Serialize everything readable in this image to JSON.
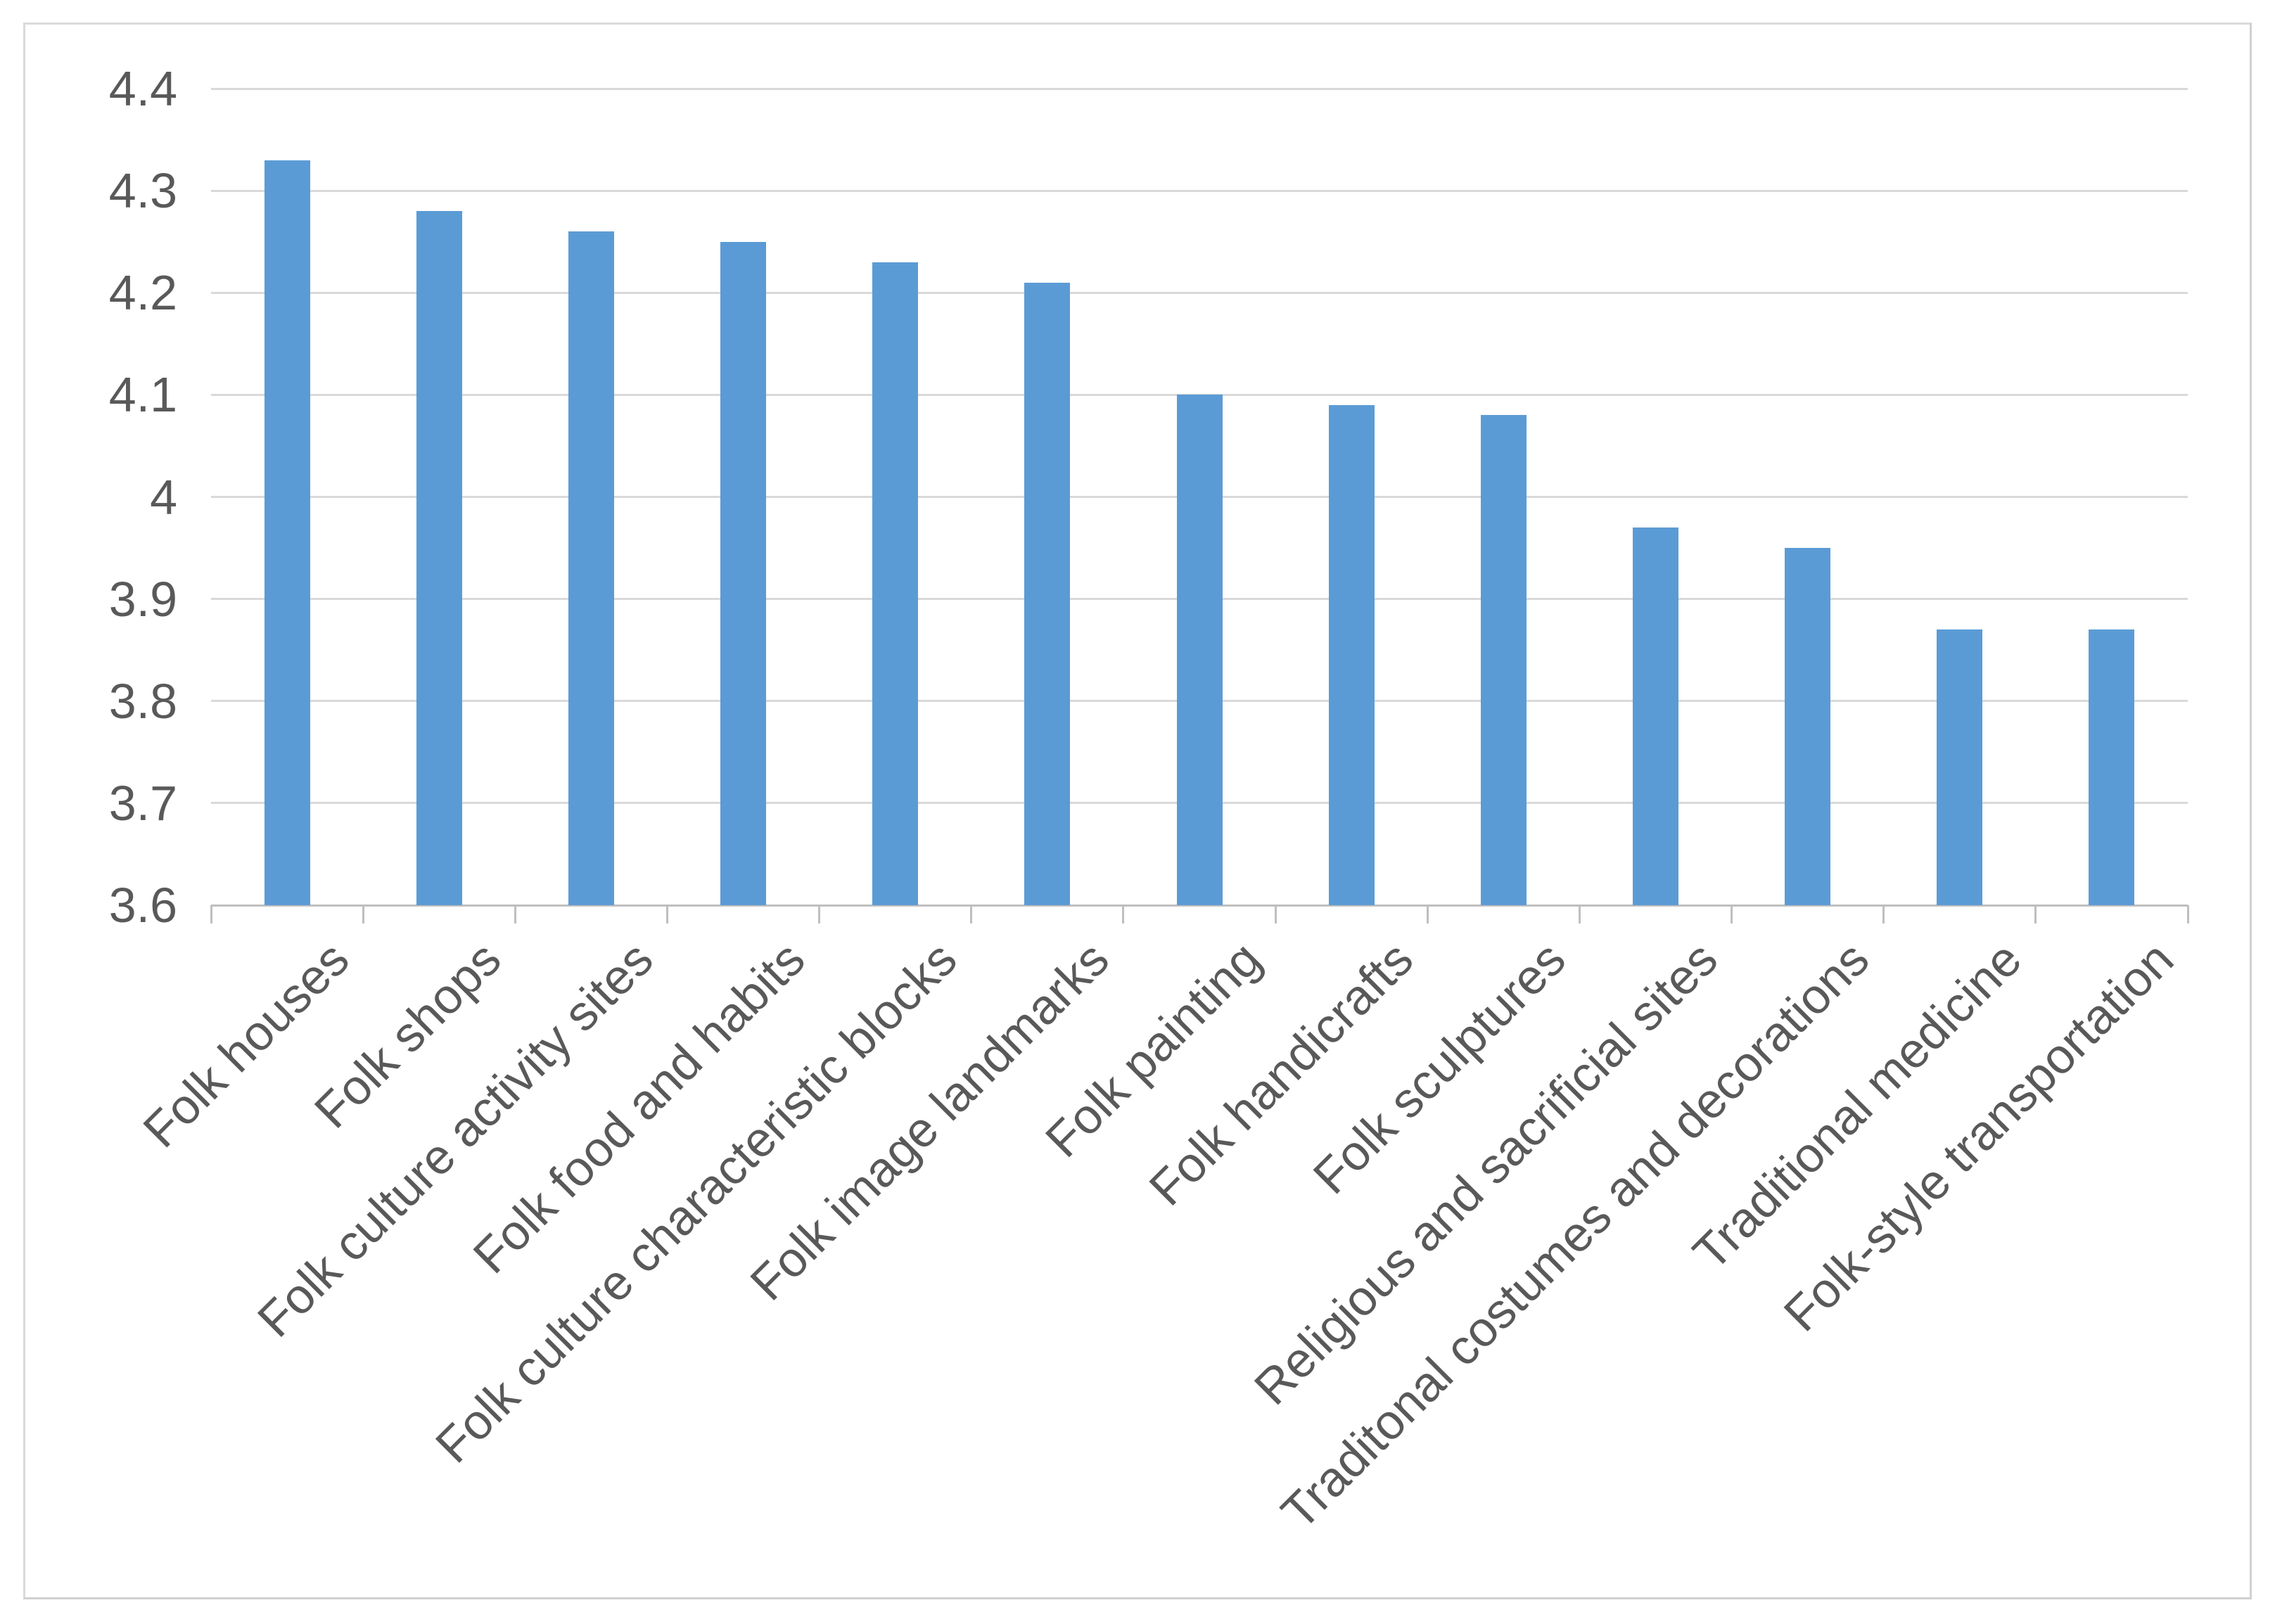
{
  "chart_data": {
    "type": "bar",
    "title": "",
    "xlabel": "",
    "ylabel": "",
    "categories": [
      "Folk houses",
      "Folk shops",
      "Folk culture activity sites",
      "Folk food and habits",
      "Folk culture characteristic blocks",
      "Folk image landmarks",
      "Folk painting",
      "Folk handicrafts",
      "Folk sculptures",
      "Religious and sacrificial sites",
      "Traditonal costumes and decorations",
      "Traditional medicine",
      "Folk-style transportation"
    ],
    "values": [
      4.33,
      4.28,
      4.26,
      4.25,
      4.23,
      4.21,
      4.1,
      4.09,
      4.08,
      3.97,
      3.95,
      3.87,
      3.87
    ],
    "ylim": [
      3.6,
      4.4
    ],
    "ytick_interval": 0.1,
    "ytick_labels": [
      "4.4",
      "4.3",
      "4.2",
      "4.1",
      "4",
      "3.9",
      "3.8",
      "3.7",
      "3.6"
    ],
    "grid": true,
    "legend": "none",
    "x_label_rotation_deg": 45,
    "colors": {
      "bar": "#5B9BD5",
      "gridline": "#D9D9D9",
      "axis_line": "#BFBFBF",
      "tick": "#BFBFBF",
      "label_text": "#595959",
      "frame_border": "#DADADA",
      "background": "#FFFFFF"
    }
  }
}
